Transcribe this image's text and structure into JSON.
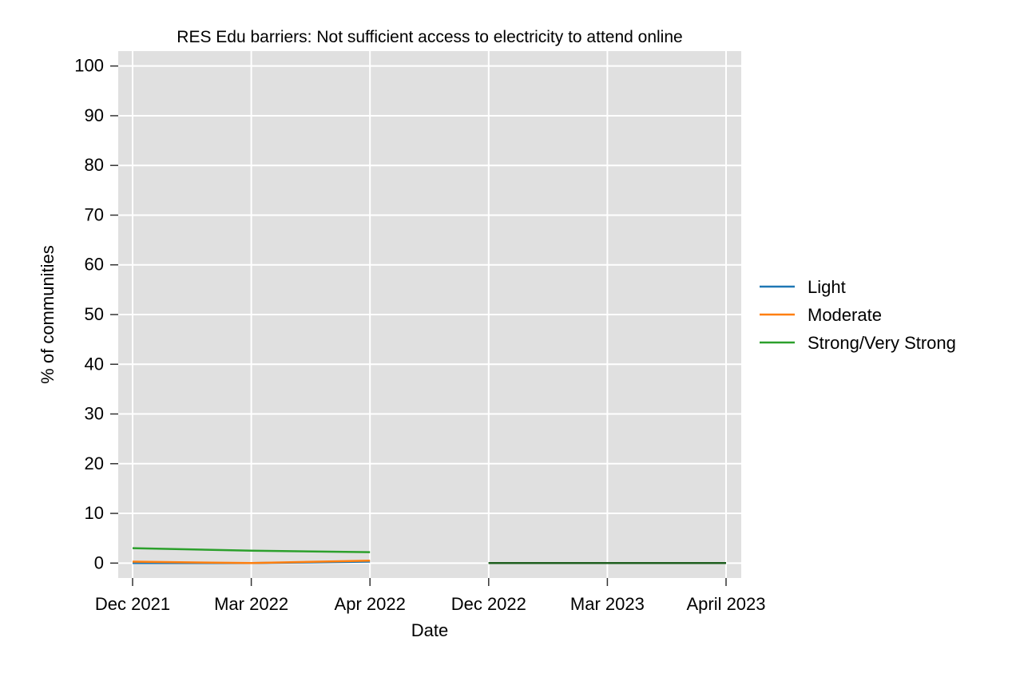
{
  "chart_data": {
    "type": "line",
    "title": "RES Edu barriers: Not sufficient access to electricity to attend online",
    "xlabel": "Date",
    "ylabel": "% of communities",
    "categories": [
      "Dec 2021",
      "Mar 2022",
      "Apr 2022",
      "Dec 2022",
      "Mar 2023",
      "April 2023"
    ],
    "y_ticks": [
      0,
      10,
      20,
      30,
      40,
      50,
      60,
      70,
      80,
      90,
      100
    ],
    "ylim": [
      -3,
      103
    ],
    "grid": true,
    "legend_position": "right",
    "series": [
      {
        "name": "Light",
        "color": "#1f77b4",
        "values": [
          0.0,
          0.0,
          0.3,
          0.0,
          0.0,
          0.0
        ]
      },
      {
        "name": "Moderate",
        "color": "#ff7f0e",
        "values": [
          0.3,
          0.0,
          0.5,
          0.0,
          0.0,
          0.0
        ]
      },
      {
        "name": "Strong/Very Strong",
        "color": "#2ca02c",
        "values": [
          3.0,
          2.5,
          2.2,
          0.0,
          0.0,
          0.0
        ]
      }
    ],
    "segments": [
      [
        0,
        2
      ],
      [
        3,
        5
      ]
    ],
    "colors": {
      "plot_background": "#e0e0e0",
      "grid": "#ffffff",
      "segment2_line": "#1f5f1f"
    }
  }
}
